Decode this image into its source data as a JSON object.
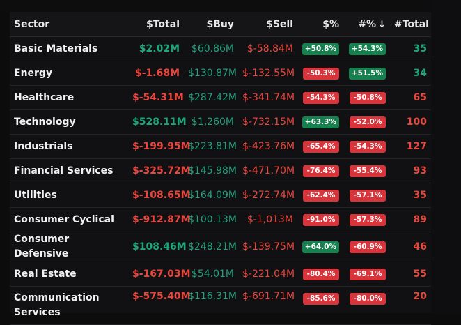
{
  "table": {
    "headers": {
      "sector": "Sector",
      "total": "$Total",
      "buy": "$Buy",
      "sell": "$Sell",
      "pct": "$%",
      "hash_pct": "#%",
      "sort_arrow": "↓",
      "hash_total": "#Total"
    },
    "rows": [
      {
        "sector": "Basic Materials",
        "total": "$2.02M",
        "total_sign": "pos",
        "buy": "$60.86M",
        "sell": "$-58.84M",
        "pct": "+50.8%",
        "pct_sign": "pos",
        "hpct": "+54.3%",
        "hpct_sign": "pos",
        "count": "35",
        "count_sign": "pos"
      },
      {
        "sector": "Energy",
        "total": "$-1.68M",
        "total_sign": "neg",
        "buy": "$130.87M",
        "sell": "$-132.55M",
        "pct": "-50.3%",
        "pct_sign": "neg",
        "hpct": "+51.5%",
        "hpct_sign": "pos",
        "count": "34",
        "count_sign": "pos"
      },
      {
        "sector": "Healthcare",
        "total": "$-54.31M",
        "total_sign": "neg",
        "buy": "$287.42M",
        "sell": "$-341.74M",
        "pct": "-54.3%",
        "pct_sign": "neg",
        "hpct": "-50.8%",
        "hpct_sign": "neg",
        "count": "65",
        "count_sign": "neg"
      },
      {
        "sector": "Technology",
        "total": "$528.11M",
        "total_sign": "pos",
        "buy": "$1,260M",
        "sell": "$-732.15M",
        "pct": "+63.3%",
        "pct_sign": "pos",
        "hpct": "-52.0%",
        "hpct_sign": "neg",
        "count": "100",
        "count_sign": "neg"
      },
      {
        "sector": "Industrials",
        "total": "$-199.95M",
        "total_sign": "neg",
        "buy": "$223.81M",
        "sell": "$-423.76M",
        "pct": "-65.4%",
        "pct_sign": "neg",
        "hpct": "-54.3%",
        "hpct_sign": "neg",
        "count": "127",
        "count_sign": "neg"
      },
      {
        "sector": "Financial Services",
        "total": "$-325.72M",
        "total_sign": "neg",
        "buy": "$145.98M",
        "sell": "$-471.70M",
        "pct": "-76.4%",
        "pct_sign": "neg",
        "hpct": "-55.4%",
        "hpct_sign": "neg",
        "count": "93",
        "count_sign": "neg"
      },
      {
        "sector": "Utilities",
        "total": "$-108.65M",
        "total_sign": "neg",
        "buy": "$164.09M",
        "sell": "$-272.74M",
        "pct": "-62.4%",
        "pct_sign": "neg",
        "hpct": "-57.1%",
        "hpct_sign": "neg",
        "count": "35",
        "count_sign": "neg"
      },
      {
        "sector": "Consumer Cyclical",
        "total": "$-912.87M",
        "total_sign": "neg",
        "buy": "$100.13M",
        "sell": "$-1,013M",
        "pct": "-91.0%",
        "pct_sign": "neg",
        "hpct": "-57.3%",
        "hpct_sign": "neg",
        "count": "89",
        "count_sign": "neg"
      },
      {
        "sector": "Consumer Defensive",
        "total": "$108.46M",
        "total_sign": "pos",
        "buy": "$248.21M",
        "sell": "$-139.75M",
        "pct": "+64.0%",
        "pct_sign": "pos",
        "hpct": "-60.9%",
        "hpct_sign": "neg",
        "count": "46",
        "count_sign": "neg"
      },
      {
        "sector": "Real Estate",
        "total": "$-167.03M",
        "total_sign": "neg",
        "buy": "$54.01M",
        "sell": "$-221.04M",
        "pct": "-80.4%",
        "pct_sign": "neg",
        "hpct": "-69.1%",
        "hpct_sign": "neg",
        "count": "55",
        "count_sign": "neg"
      },
      {
        "sector": "Communication Services",
        "total": "$-575.40M",
        "total_sign": "neg",
        "buy": "$116.31M",
        "sell": "$-691.71M",
        "pct": "-85.6%",
        "pct_sign": "neg",
        "hpct": "-80.0%",
        "hpct_sign": "neg",
        "count": "20",
        "count_sign": "neg"
      }
    ]
  },
  "colors": {
    "positive": "#1fa57a",
    "negative": "#e8473e",
    "badge_green": "#16804f",
    "badge_red": "#d8343c",
    "background": "#111113"
  }
}
